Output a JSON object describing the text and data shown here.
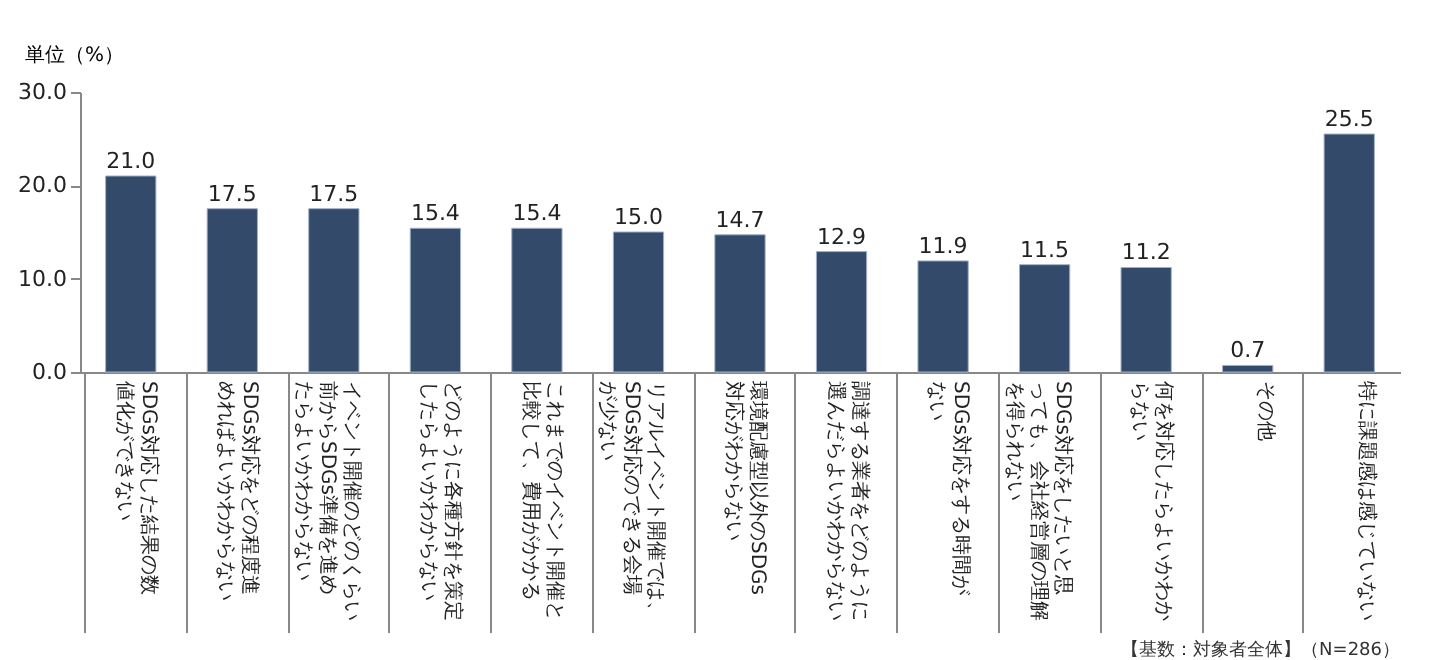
{
  "chart_data": {
    "type": "bar",
    "ylabel": "単位（%）",
    "annotations": [
      "【基数：対象者全体】（N=286）"
    ],
    "categories": [
      "SDGs対応した結果の数値化ができない",
      "SDGs対応をどの程度進めればよいかわからない",
      "イベント開催のどのくらい前からSDGs準備を進めたらよいかわからない",
      "どのように各種方針を策定したらよいかわからない",
      "これまでのイベント開催と比較して、費用がかかる",
      "リアルイベント開催では、SDGs対応のできる会場が少ない",
      "環境配慮型以外のSDGs対応がわからない",
      "調達する業者をどのように選んだらよいかわからない",
      "SDGs対応をする時間がない",
      "SDGs対応をしたいと思っても、会社経営層の理解を得られない",
      "何を対応したらよいかわからない",
      "その他",
      "特に課題感は感じていない"
    ],
    "values": [
      21.0,
      17.5,
      17.5,
      15.4,
      15.4,
      15.0,
      14.7,
      12.9,
      11.9,
      11.5,
      11.2,
      0.7,
      25.5
    ],
    "value_labels": [
      "21.0",
      "17.5",
      "17.5",
      "15.4",
      "15.4",
      "15.0",
      "14.7",
      "12.9",
      "11.9",
      "11.5",
      "11.2",
      "0.7",
      "25.5"
    ],
    "color": "#344a6b",
    "ylim": [
      0,
      30
    ],
    "yticks": [
      {
        "value": 0,
        "label": "0.0"
      },
      {
        "value": 10,
        "label": "10.0"
      },
      {
        "value": 20,
        "label": "20.0"
      },
      {
        "value": 30,
        "label": "30.0"
      }
    ],
    "grid": false
  }
}
